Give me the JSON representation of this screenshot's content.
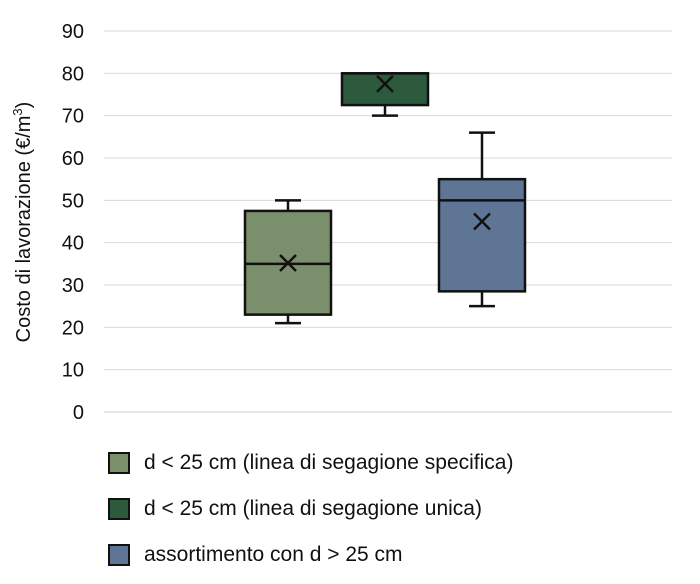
{
  "chart_data": {
    "type": "box",
    "ylabel": "Costo di lavorazione (€/m",
    "ylabel_sup": "3",
    "ylabel_close": ")",
    "ylim": [
      0,
      90
    ],
    "yticks": [
      0,
      10,
      20,
      30,
      40,
      50,
      60,
      70,
      80,
      90
    ],
    "grid": true,
    "legend_position": "bottom",
    "series": [
      {
        "name": "d < 25 cm (linea di segagione specifica)",
        "color": "#7a8f6b",
        "min": 21,
        "q1": 23,
        "median": 35,
        "q3": 47.5,
        "max": 50,
        "mean": 35.2
      },
      {
        "name": "d < 25 cm (linea di segagione unica)",
        "color": "#2d5a3d",
        "min": 70,
        "q1": 72.5,
        "median": 80,
        "q3": 80,
        "max": 80,
        "mean": 77.5
      },
      {
        "name": "assortimento con d > 25 cm",
        "color": "#5f7595",
        "min": 25,
        "q1": 28.5,
        "median": 50,
        "q3": 55,
        "max": 66,
        "mean": 45
      }
    ]
  }
}
